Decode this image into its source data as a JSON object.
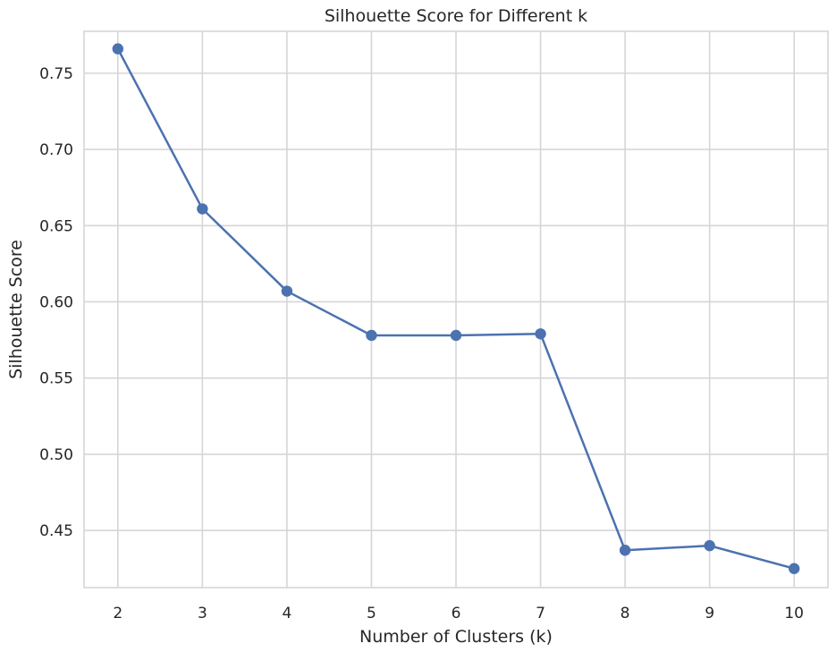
{
  "chart_data": {
    "type": "line",
    "title": "Silhouette Score for Different k",
    "xlabel": "Number of Clusters (k)",
    "ylabel": "Silhouette Score",
    "x": [
      2,
      3,
      4,
      5,
      6,
      7,
      8,
      9,
      10
    ],
    "xticks": [
      "2",
      "3",
      "4",
      "5",
      "6",
      "7",
      "8",
      "9",
      "10"
    ],
    "yticks": [
      "0.45",
      "0.50",
      "0.55",
      "0.60",
      "0.65",
      "0.70",
      "0.75"
    ],
    "ytick_values": [
      0.45,
      0.5,
      0.55,
      0.6,
      0.65,
      0.7,
      0.75
    ],
    "series": [
      {
        "values": [
          0.766,
          0.661,
          0.607,
          0.578,
          0.578,
          0.579,
          0.437,
          0.44,
          0.425
        ],
        "color": "#4c72b0",
        "marker": "circle"
      }
    ],
    "xlim": [
      1.6,
      10.4
    ],
    "ylim": [
      0.4125,
      0.7775
    ],
    "grid": true,
    "background_color": "#ffffff",
    "grid_color": "#d6d6d6",
    "text_color": "#262626"
  }
}
